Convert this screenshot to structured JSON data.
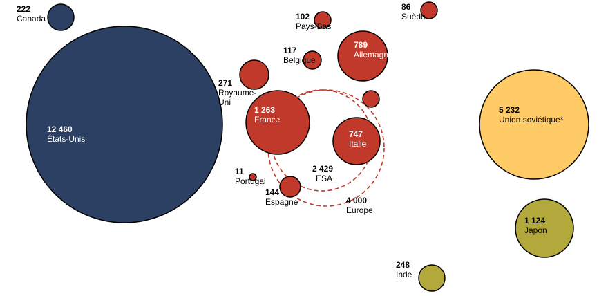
{
  "chart_data": {
    "type": "bubble",
    "title": "",
    "unit": "",
    "series": [
      {
        "name": "",
        "color": "#2b4062"
      },
      {
        "name": "",
        "color": "#c0392b"
      },
      {
        "name": "",
        "color": "#fecb67"
      },
      {
        "name": "",
        "color": "#b2a83c"
      }
    ],
    "bubbles": [
      {
        "value_text": "12 460",
        "value": 12460,
        "label": "États-Unis",
        "color": "#2b4062",
        "text_color": "#ffffff"
      },
      {
        "value_text": "222",
        "value": 222,
        "label": "Canada",
        "color": "#2b4062",
        "text_color": "#000000"
      },
      {
        "value_text": "271",
        "value": 271,
        "label": "Royaume-Uni",
        "label_lines": [
          "Royaume-",
          "Uni"
        ],
        "color": "#c0392b",
        "text_color": "#000000"
      },
      {
        "value_text": "1 263",
        "value": 1263,
        "label": "France",
        "color": "#c0392b",
        "text_color": "#ffffff"
      },
      {
        "value_text": "747",
        "value": 747,
        "label": "Italie",
        "color": "#c0392b",
        "text_color": "#ffffff"
      },
      {
        "value_text": "789",
        "value": 789,
        "label": "Allemagne",
        "color": "#c0392b",
        "text_color": "#ffffff"
      },
      {
        "value_text": "102",
        "value": 102,
        "label": "Pays-Bas",
        "color": "#c0392b",
        "text_color": "#000000"
      },
      {
        "value_text": "117",
        "value": 117,
        "label": "Belgique",
        "color": "#c0392b",
        "text_color": "#000000"
      },
      {
        "value_text": "86",
        "value": 86,
        "label": "Suède",
        "color": "#c0392b",
        "text_color": "#000000"
      },
      {
        "value_text": "",
        "value": null,
        "label": "",
        "color": "#c0392b",
        "text_color": "#000000"
      },
      {
        "value_text": "11",
        "value": 11,
        "label": "Portugal",
        "color": "#c0392b",
        "text_color": "#000000"
      },
      {
        "value_text": "144",
        "value": 144,
        "label": "Espagne",
        "color": "#c0392b",
        "text_color": "#000000"
      },
      {
        "value_text": "5 232",
        "value": 5232,
        "label": "Union soviétique*",
        "color": "#fecb67",
        "text_color": "#000000"
      },
      {
        "value_text": "1 124",
        "value": 1124,
        "label": "Japon",
        "color": "#b2a83c",
        "text_color": "#000000"
      },
      {
        "value_text": "248",
        "value": 248,
        "label": "Inde",
        "color": "#b2a83c",
        "text_color": "#000000"
      }
    ],
    "groups": [
      {
        "value_text": "2 429",
        "value": 2429,
        "label": "ESA",
        "style": "dashed",
        "color": "#c0392b"
      },
      {
        "value_text": "4 000",
        "value": 4000,
        "label": "Europe",
        "style": "dashed",
        "color": "#c0392b"
      }
    ]
  }
}
